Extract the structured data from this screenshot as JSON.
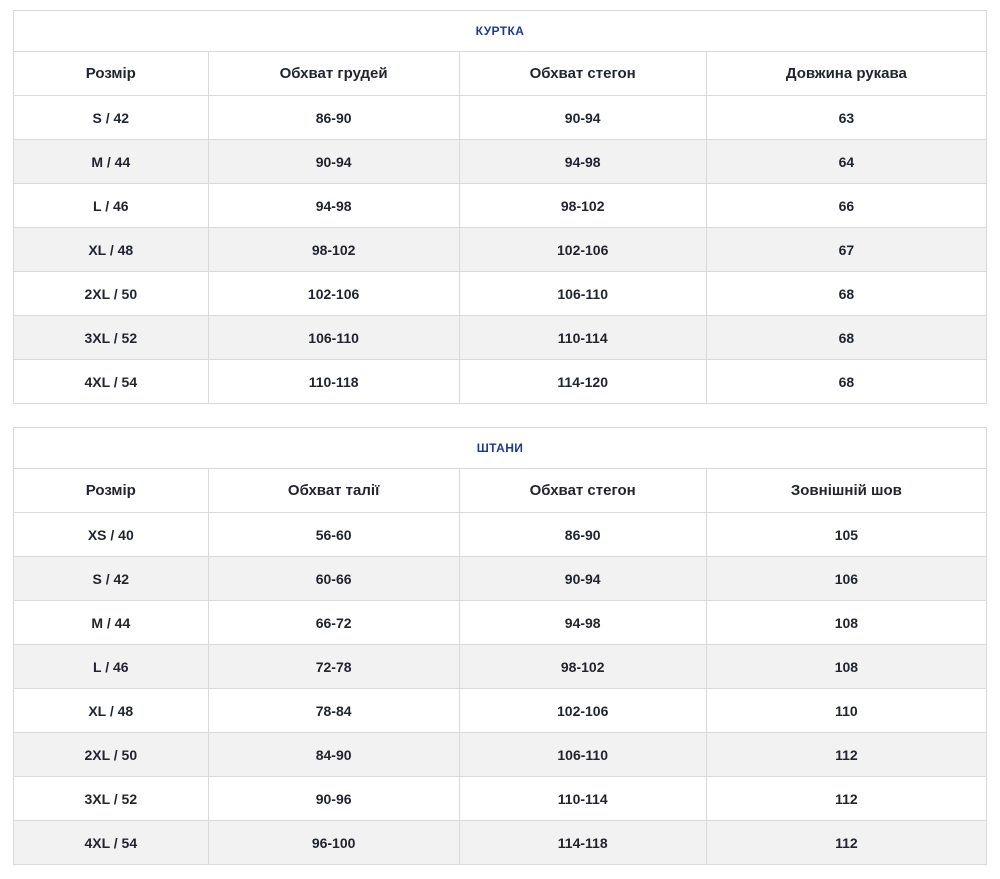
{
  "colors": {
    "title_accent": "#1a3b8f",
    "row_stripe": "#f2f2f2",
    "cell_border": "#d9d9d9",
    "text": "#1f242e"
  },
  "tables": [
    {
      "title": "КУРТКА",
      "headers": [
        "Розмір",
        "Обхват грудей",
        "Обхват стегон",
        "Довжина рукава"
      ],
      "rows": [
        [
          "S / 42",
          "86-90",
          "90-94",
          "63"
        ],
        [
          "M / 44",
          "90-94",
          "94-98",
          "64"
        ],
        [
          "L / 46",
          "94-98",
          "98-102",
          "66"
        ],
        [
          "XL / 48",
          "98-102",
          "102-106",
          "67"
        ],
        [
          "2XL / 50",
          "102-106",
          "106-110",
          "68"
        ],
        [
          "3XL / 52",
          "106-110",
          "110-114",
          "68"
        ],
        [
          "4XL / 54",
          "110-118",
          "114-120",
          "68"
        ]
      ]
    },
    {
      "title": "ШТАНИ",
      "headers": [
        "Розмір",
        "Обхват талії",
        "Обхват стегон",
        "Зовнішній шов"
      ],
      "rows": [
        [
          "XS / 40",
          "56-60",
          "86-90",
          "105"
        ],
        [
          "S / 42",
          "60-66",
          "90-94",
          "106"
        ],
        [
          "M / 44",
          "66-72",
          "94-98",
          "108"
        ],
        [
          "L / 46",
          "72-78",
          "98-102",
          "108"
        ],
        [
          "XL / 48",
          "78-84",
          "102-106",
          "110"
        ],
        [
          "2XL / 50",
          "84-90",
          "106-110",
          "112"
        ],
        [
          "3XL / 52",
          "90-96",
          "110-114",
          "112"
        ],
        [
          "4XL / 54",
          "96-100",
          "114-118",
          "112"
        ]
      ]
    }
  ]
}
